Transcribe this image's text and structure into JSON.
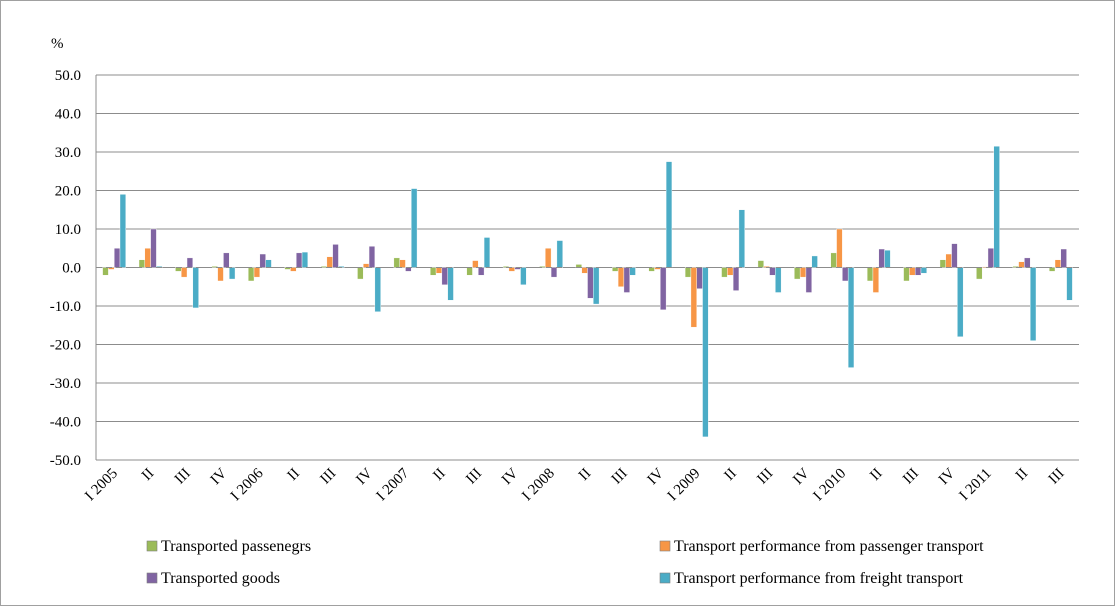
{
  "chart_data": {
    "type": "bar",
    "unit_label": "%",
    "ylim": [
      -50,
      50
    ],
    "y_ticks": [
      "50.0",
      "40.0",
      "30.0",
      "20.0",
      "10.0",
      "0.0",
      "-10.0",
      "-20.0",
      "-30.0",
      "-40.0",
      "-50.0"
    ],
    "grid": true,
    "legend_position": "bottom",
    "categories": [
      "I 2005",
      "II",
      "III",
      "IV",
      "I 2006",
      "II",
      "III",
      "IV",
      "I 2007",
      "II",
      "III",
      "IV",
      "I 2008",
      "II",
      "III",
      "IV",
      "I 2009",
      "II",
      "III",
      "IV",
      "I 2010",
      "II",
      "III",
      "IV",
      "I 2011",
      "II",
      "III"
    ],
    "series": [
      {
        "name": "Transported passenegrs",
        "color": "#9bbb59",
        "values": [
          -2.0,
          2.0,
          -1.0,
          0.3,
          -3.5,
          -0.5,
          0.3,
          -3.0,
          2.5,
          -2.0,
          -2.0,
          0.3,
          0.3,
          0.8,
          -1.0,
          -1.0,
          -2.5,
          -2.5,
          1.8,
          -3.0,
          3.8,
          -3.5,
          -3.5,
          2.0,
          -3.0,
          0.3,
          -1.0
        ]
      },
      {
        "name": "Transport performance from passenger transport",
        "color": "#f79646",
        "values": [
          -0.5,
          5.0,
          -2.5,
          -3.5,
          -2.5,
          -1.0,
          2.8,
          1.0,
          2.0,
          -1.5,
          1.8,
          -1.0,
          5.0,
          -1.5,
          -5.0,
          -0.5,
          -15.5,
          -2.0,
          0.3,
          -2.5,
          10.0,
          -6.5,
          -2.0,
          3.5,
          0.2,
          1.5,
          2.0
        ]
      },
      {
        "name": "Transported goods",
        "color": "#8064a2",
        "values": [
          5.0,
          10.0,
          2.5,
          3.8,
          3.5,
          3.8,
          6.0,
          5.5,
          -1.0,
          -4.5,
          -2.0,
          -0.5,
          -2.5,
          -8.0,
          -6.5,
          -11.0,
          -5.5,
          -6.0,
          -2.0,
          -6.5,
          -3.5,
          4.8,
          -2.0,
          6.2,
          5.0,
          2.5,
          4.8
        ]
      },
      {
        "name": "Transport performance from freight transport",
        "color": "#4bacc6",
        "values": [
          19.0,
          0.3,
          -10.5,
          -3.0,
          2.0,
          4.0,
          0.3,
          -11.5,
          20.5,
          -8.5,
          7.8,
          -4.5,
          7.0,
          -9.5,
          -2.0,
          27.5,
          -44.0,
          15.0,
          -6.5,
          3.0,
          -26.0,
          4.5,
          -1.5,
          -18.0,
          31.5,
          -19.0,
          -8.5
        ]
      }
    ]
  }
}
